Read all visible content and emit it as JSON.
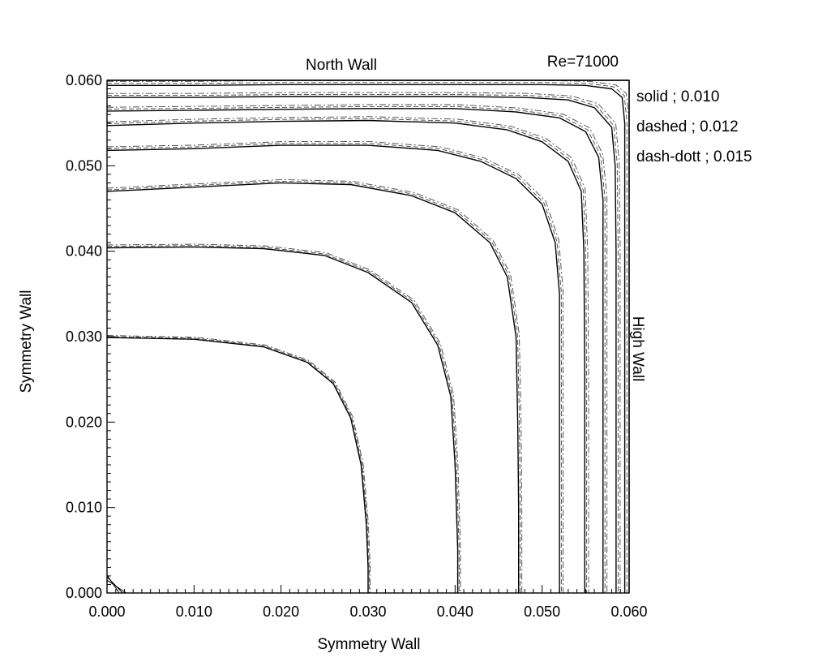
{
  "chart_data": {
    "type": "line",
    "title": "",
    "annotation": "Re=71000",
    "xlabel": "Symmetry Wall",
    "ylabel": "Symmetry Wall",
    "top_label": "North Wall",
    "right_label": "High Wall",
    "xlim": [
      0,
      0.06
    ],
    "ylim": [
      0,
      0.06
    ],
    "x_ticks": [
      "0.000",
      "0.010",
      "0.020",
      "0.030",
      "0.040",
      "0.050",
      "0.060"
    ],
    "y_ticks": [
      "0.000",
      "0.010",
      "0.020",
      "0.030",
      "0.040",
      "0.050",
      "0.060"
    ],
    "x_tick_values": [
      0,
      0.01,
      0.02,
      0.03,
      0.04,
      0.05,
      0.06
    ],
    "y_tick_values": [
      0,
      0.01,
      0.02,
      0.03,
      0.04,
      0.05,
      0.06
    ],
    "grid": false,
    "legend_position": "top-right",
    "legend": [
      {
        "label": "solid ; 0.010",
        "style": "solid"
      },
      {
        "label": "dashed ; 0.012",
        "style": "dashed"
      },
      {
        "label": "dash-dott ; 0.015",
        "style": "dash-dot"
      }
    ],
    "contours": [
      {
        "level": 1,
        "points": [
          [
            0,
            0.0299
          ],
          [
            0.01,
            0.0297
          ],
          [
            0.018,
            0.0288
          ],
          [
            0.023,
            0.027
          ],
          [
            0.026,
            0.0245
          ],
          [
            0.028,
            0.0205
          ],
          [
            0.0292,
            0.015
          ],
          [
            0.0298,
            0.008
          ],
          [
            0.03,
            0.003
          ],
          [
            0.03,
            0
          ]
        ]
      },
      {
        "level": 2,
        "points": [
          [
            0,
            0.0404
          ],
          [
            0.01,
            0.0405
          ],
          [
            0.018,
            0.0403
          ],
          [
            0.025,
            0.0395
          ],
          [
            0.03,
            0.0375
          ],
          [
            0.035,
            0.034
          ],
          [
            0.038,
            0.029
          ],
          [
            0.0395,
            0.023
          ],
          [
            0.04,
            0.015
          ],
          [
            0.0403,
            0.005
          ],
          [
            0.0403,
            0
          ]
        ]
      },
      {
        "level": 3,
        "points": [
          [
            0,
            0.047
          ],
          [
            0.01,
            0.0475
          ],
          [
            0.02,
            0.048
          ],
          [
            0.028,
            0.0478
          ],
          [
            0.035,
            0.0465
          ],
          [
            0.04,
            0.0445
          ],
          [
            0.044,
            0.041
          ],
          [
            0.046,
            0.037
          ],
          [
            0.047,
            0.03
          ],
          [
            0.0472,
            0.02
          ],
          [
            0.0473,
            0.01
          ],
          [
            0.0473,
            0
          ]
        ]
      },
      {
        "level": 4,
        "points": [
          [
            0,
            0.0518
          ],
          [
            0.01,
            0.052
          ],
          [
            0.02,
            0.0524
          ],
          [
            0.03,
            0.0524
          ],
          [
            0.038,
            0.0518
          ],
          [
            0.043,
            0.0505
          ],
          [
            0.047,
            0.0485
          ],
          [
            0.05,
            0.0455
          ],
          [
            0.0515,
            0.041
          ],
          [
            0.052,
            0.035
          ],
          [
            0.052,
            0.025
          ],
          [
            0.052,
            0.01
          ],
          [
            0.052,
            0
          ]
        ]
      },
      {
        "level": 5,
        "points": [
          [
            0,
            0.0547
          ],
          [
            0.01,
            0.055
          ],
          [
            0.02,
            0.0552
          ],
          [
            0.03,
            0.0553
          ],
          [
            0.04,
            0.055
          ],
          [
            0.046,
            0.0542
          ],
          [
            0.05,
            0.0528
          ],
          [
            0.053,
            0.0505
          ],
          [
            0.0545,
            0.047
          ],
          [
            0.0548,
            0.04
          ],
          [
            0.0549,
            0.025
          ],
          [
            0.0549,
            0.01
          ],
          [
            0.0549,
            0
          ]
        ]
      },
      {
        "level": 6,
        "points": [
          [
            0,
            0.0564
          ],
          [
            0.01,
            0.0565
          ],
          [
            0.02,
            0.0566
          ],
          [
            0.03,
            0.0567
          ],
          [
            0.04,
            0.0567
          ],
          [
            0.047,
            0.0563
          ],
          [
            0.052,
            0.0556
          ],
          [
            0.055,
            0.054
          ],
          [
            0.0565,
            0.051
          ],
          [
            0.057,
            0.046
          ],
          [
            0.057,
            0.035
          ],
          [
            0.057,
            0.015
          ],
          [
            0.057,
            0
          ]
        ]
      },
      {
        "level": 7,
        "points": [
          [
            0,
            0.058
          ],
          [
            0.01,
            0.058
          ],
          [
            0.02,
            0.0581
          ],
          [
            0.03,
            0.0581
          ],
          [
            0.04,
            0.0581
          ],
          [
            0.048,
            0.058
          ],
          [
            0.053,
            0.0577
          ],
          [
            0.056,
            0.0568
          ],
          [
            0.058,
            0.0545
          ],
          [
            0.0584,
            0.05
          ],
          [
            0.0585,
            0.04
          ],
          [
            0.0585,
            0.02
          ],
          [
            0.0585,
            0
          ]
        ]
      },
      {
        "level": 8,
        "points": [
          [
            0,
            0.0594
          ],
          [
            0.01,
            0.0594
          ],
          [
            0.02,
            0.0595
          ],
          [
            0.03,
            0.0595
          ],
          [
            0.04,
            0.0595
          ],
          [
            0.05,
            0.0595
          ],
          [
            0.055,
            0.0594
          ],
          [
            0.058,
            0.059
          ],
          [
            0.0592,
            0.058
          ],
          [
            0.0595,
            0.055
          ],
          [
            0.0595,
            0.04
          ],
          [
            0.0595,
            0.02
          ],
          [
            0.0595,
            0
          ]
        ]
      },
      {
        "level": 9,
        "points": [
          [
            0,
            0.06
          ],
          [
            0.06,
            0.06
          ],
          [
            0.06,
            0
          ]
        ]
      }
    ],
    "corner_marks": [
      {
        "x": 0.0006,
        "y": 0.0021
      },
      {
        "x": 0.001,
        "y": 0.0019
      },
      {
        "x": 0.0014,
        "y": 0.0015
      }
    ]
  }
}
